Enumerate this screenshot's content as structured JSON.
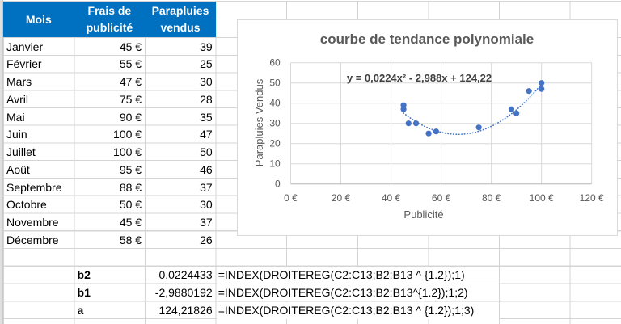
{
  "sheet": {
    "header": [
      "Mois",
      "Frais de publicité",
      "Parapluies vendus"
    ],
    "rows": [
      {
        "month": "Janvier",
        "ad_cost": "45 €",
        "umbrellas_sold": "39"
      },
      {
        "month": "Février",
        "ad_cost": "55 €",
        "umbrellas_sold": "25"
      },
      {
        "month": "Mars",
        "ad_cost": "47 €",
        "umbrellas_sold": "30"
      },
      {
        "month": "Avril",
        "ad_cost": "75 €",
        "umbrellas_sold": "28"
      },
      {
        "month": "Mai",
        "ad_cost": "90 €",
        "umbrellas_sold": "35"
      },
      {
        "month": "Juin",
        "ad_cost": "100 €",
        "umbrellas_sold": "47"
      },
      {
        "month": "Juillet",
        "ad_cost": "100 €",
        "umbrellas_sold": "50"
      },
      {
        "month": "Août",
        "ad_cost": "95 €",
        "umbrellas_sold": "46"
      },
      {
        "month": "Septembre",
        "ad_cost": "88 €",
        "umbrellas_sold": "37"
      },
      {
        "month": "Octobre",
        "ad_cost": "50 €",
        "umbrellas_sold": "30"
      },
      {
        "month": "Novembre",
        "ad_cost": "45 €",
        "umbrellas_sold": "37"
      },
      {
        "month": "Décembre",
        "ad_cost": "58 €",
        "umbrellas_sold": "26"
      }
    ],
    "regression": [
      {
        "label": "b2",
        "value": "0,0224433",
        "formula": "=INDEX(DROITEREG(C2:C13;B2:B13 ^ {1.2});1)"
      },
      {
        "label": "b1",
        "value": "-2,9880192",
        "formula": "=INDEX(DROITEREG(C2:C13;B2:B13^{1.2});1;2)"
      },
      {
        "label": "a",
        "value": "124,21826",
        "formula": "=INDEX(DROITEREG(C2:C13;B2:B13 ^ {1.2});1;3)"
      }
    ],
    "colors": {
      "header_bg": "#0070C0",
      "header_text": "#FFFFFF",
      "gridline": "#D4D4D4"
    }
  },
  "chart_data": {
    "type": "scatter",
    "title": "courbe de tendance polynomiale",
    "xlabel": "Publicité",
    "ylabel": "Parapluies Vendus",
    "series": [
      {
        "name": "Parapluies vendus",
        "x": [
          45,
          55,
          47,
          75,
          90,
          100,
          100,
          95,
          88,
          50,
          45,
          58
        ],
        "y": [
          39,
          25,
          30,
          28,
          35,
          47,
          50,
          46,
          37,
          30,
          37,
          26
        ],
        "color": "#4472C4"
      }
    ],
    "xlim": [
      0,
      120
    ],
    "ylim": [
      0,
      60
    ],
    "xticks": [
      0,
      20,
      40,
      60,
      80,
      100,
      120
    ],
    "xtick_labels": [
      "0 €",
      "20 €",
      "40 €",
      "60 €",
      "80 €",
      "100 €",
      "120 €"
    ],
    "yticks": [
      0,
      10,
      20,
      30,
      40,
      50,
      60
    ],
    "ytick_labels": [
      "0",
      "10",
      "20",
      "30",
      "40",
      "50",
      "60"
    ],
    "grid": true,
    "legend": null,
    "trendline": {
      "type": "polynomial",
      "order": 2,
      "equation": "y = 0,0224x² - 2,988x + 124,22",
      "coefficients": [
        0.0224,
        -2.988,
        124.22
      ],
      "x_range": [
        45,
        100
      ],
      "style": "dotted",
      "color": "#4472C4"
    },
    "colors": {
      "gridline": "#D9D9D9",
      "text": "#595959"
    }
  }
}
